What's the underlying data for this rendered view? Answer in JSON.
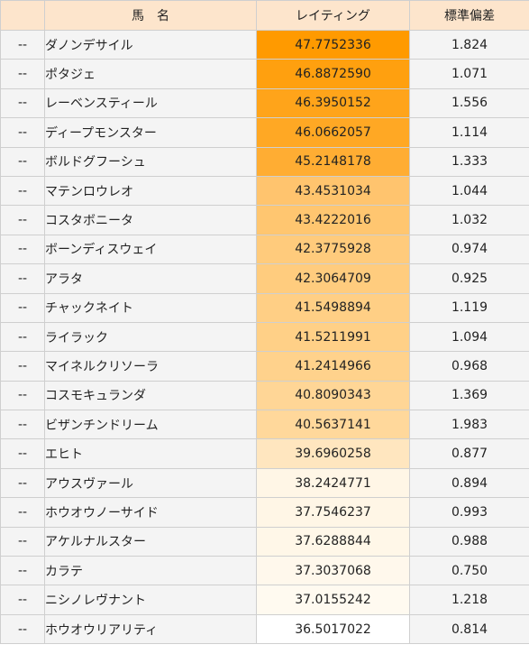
{
  "table": {
    "headers": {
      "mark": "",
      "name": "馬　名",
      "rating": "レイティング",
      "sd": "標準偏差"
    },
    "rows": [
      {
        "mark": "--",
        "name": "ダノンデサイル",
        "rating": "47.7752336",
        "sd": "1.824",
        "rating_color": "#ff9a00"
      },
      {
        "mark": "--",
        "name": "ポタジェ",
        "rating": "46.8872590",
        "sd": "1.071",
        "rating_color": "#ffa00f"
      },
      {
        "mark": "--",
        "name": "レーベンスティール",
        "rating": "46.3950152",
        "sd": "1.556",
        "rating_color": "#ffa41a"
      },
      {
        "mark": "--",
        "name": "ディープモンスター",
        "rating": "46.0662057",
        "sd": "1.114",
        "rating_color": "#ffa824"
      },
      {
        "mark": "--",
        "name": "ボルドグフーシュ",
        "rating": "45.2148178",
        "sd": "1.333",
        "rating_color": "#ffad33"
      },
      {
        "mark": "--",
        "name": "マテンロウレオ",
        "rating": "43.4531034",
        "sd": "1.044",
        "rating_color": "#ffc46e"
      },
      {
        "mark": "--",
        "name": "コスタボニータ",
        "rating": "43.4222016",
        "sd": "1.032",
        "rating_color": "#ffc670"
      },
      {
        "mark": "--",
        "name": "ボーンディスウェイ",
        "rating": "42.3775928",
        "sd": "0.974",
        "rating_color": "#ffcb7c"
      },
      {
        "mark": "--",
        "name": "アラタ",
        "rating": "42.3064709",
        "sd": "0.925",
        "rating_color": "#ffcc7e"
      },
      {
        "mark": "--",
        "name": "チャックネイト",
        "rating": "41.5498894",
        "sd": "1.119",
        "rating_color": "#ffcf85"
      },
      {
        "mark": "--",
        "name": "ライラック",
        "rating": "41.5211991",
        "sd": "1.094",
        "rating_color": "#ffd087"
      },
      {
        "mark": "--",
        "name": "マイネルクリソーラ",
        "rating": "41.2414966",
        "sd": "0.968",
        "rating_color": "#ffd28c"
      },
      {
        "mark": "--",
        "name": "コスモキュランダ",
        "rating": "40.8090343",
        "sd": "1.369",
        "rating_color": "#ffd696"
      },
      {
        "mark": "--",
        "name": "ビザンチンドリーム",
        "rating": "40.5637141",
        "sd": "1.983",
        "rating_color": "#ffd89b"
      },
      {
        "mark": "--",
        "name": "エヒト",
        "rating": "39.6960258",
        "sd": "0.877",
        "rating_color": "#ffe6bf"
      },
      {
        "mark": "--",
        "name": "アウスヴァール",
        "rating": "38.2424771",
        "sd": "0.894",
        "rating_color": "#fff6e6"
      },
      {
        "mark": "--",
        "name": "ホウオウノーサイド",
        "rating": "37.7546237",
        "sd": "0.993",
        "rating_color": "#fff6e6"
      },
      {
        "mark": "--",
        "name": "アケルナルスター",
        "rating": "37.6288844",
        "sd": "0.988",
        "rating_color": "#fff7e8"
      },
      {
        "mark": "--",
        "name": "カラテ",
        "rating": "37.3037068",
        "sd": "0.750",
        "rating_color": "#fff8ec"
      },
      {
        "mark": "--",
        "name": "ニシノレヴナント",
        "rating": "37.0155242",
        "sd": "1.218",
        "rating_color": "#fffaf0"
      },
      {
        "mark": "--",
        "name": "ホウオウリアリティ",
        "rating": "36.5017022",
        "sd": "0.814",
        "rating_color": "#ffffff"
      }
    ]
  }
}
